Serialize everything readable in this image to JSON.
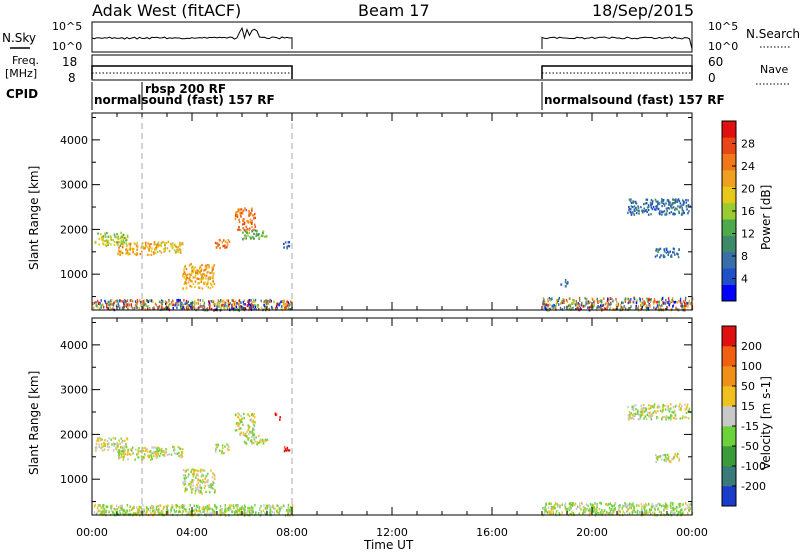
{
  "header": {
    "title": "Adak West (fitACF)",
    "beam": "Beam 17",
    "date": "18/Sep/2015"
  },
  "top_panels": {
    "nsky_label": "N.Sky",
    "nsky_ticks": [
      "10^5",
      "10^0"
    ],
    "nsearch_label": "N.Search",
    "nsearch_ticks": [
      "10^5",
      "10^0"
    ],
    "freq_label": "Freq.",
    "freq_unit": "[MHz]",
    "freq_ticks": [
      "18",
      "8"
    ],
    "nave_label": "Nave",
    "nave_ticks": [
      "60",
      "0"
    ],
    "cpid_label": "CPID",
    "cpid_entries": [
      {
        "label": "normalsound (fast) 157 RF",
        "start_hour": 0
      },
      {
        "label": "rbsp 200 RF",
        "start_hour": 2
      },
      {
        "label": "normalsound (fast) 157 RF",
        "start_hour": 18
      }
    ]
  },
  "chart_data": [
    {
      "type": "scatter",
      "name": "power_panel",
      "ylabel": "Slant Range [km]",
      "yticks": [
        "1000",
        "2000",
        "3000",
        "4000"
      ],
      "ylim": [
        200,
        4600
      ],
      "xlim": [
        0,
        24
      ],
      "colorbar": {
        "label": "Power [dB]",
        "ticks": [
          "28",
          "24",
          "20",
          "16",
          "12",
          "8",
          "4"
        ],
        "colors": [
          "#0000ff",
          "#2050c8",
          "#3a6ea8",
          "#3c8a6a",
          "#4caa4c",
          "#9acc32",
          "#e6c81a",
          "#f0a020",
          "#f07818",
          "#e84818",
          "#e01010"
        ]
      },
      "clusters": [
        {
          "t0": 0.1,
          "t1": 1.4,
          "r0": 1650,
          "r1": 1950,
          "level": 5
        },
        {
          "t0": 1.0,
          "t1": 2.6,
          "r0": 1450,
          "r1": 1750,
          "level": 7
        },
        {
          "t0": 2.5,
          "t1": 3.6,
          "r0": 1500,
          "r1": 1750,
          "level": 6
        },
        {
          "t0": 3.6,
          "t1": 4.9,
          "r0": 700,
          "r1": 1250,
          "level": 7
        },
        {
          "t0": 4.9,
          "t1": 5.5,
          "r0": 1600,
          "r1": 1800,
          "level": 8
        },
        {
          "t0": 5.7,
          "t1": 6.5,
          "r0": 2000,
          "r1": 2500,
          "level": 8
        },
        {
          "t0": 6.0,
          "t1": 7.0,
          "r0": 1800,
          "r1": 2000,
          "level": 4
        },
        {
          "t0": 7.6,
          "t1": 7.9,
          "r0": 1600,
          "r1": 1750,
          "level": 2
        },
        {
          "t0": 18.7,
          "t1": 19.0,
          "r0": 750,
          "r1": 900,
          "level": 2
        },
        {
          "t0": 21.4,
          "t1": 23.9,
          "r0": 2350,
          "r1": 2700,
          "level": 2
        },
        {
          "t0": 22.5,
          "t1": 23.5,
          "r0": 1400,
          "r1": 1600,
          "level": 2
        }
      ],
      "ground_bands": [
        {
          "t0": 0.0,
          "t1": 8.0,
          "r0": 220,
          "r1": 450
        },
        {
          "t0": 18.0,
          "t1": 24.0,
          "r0": 220,
          "r1": 500
        }
      ]
    },
    {
      "type": "scatter",
      "name": "velocity_panel",
      "ylabel": "Slant Range [km]",
      "yticks": [
        "1000",
        "2000",
        "3000",
        "4000"
      ],
      "ylim": [
        200,
        4600
      ],
      "xlim": [
        0,
        24
      ],
      "xlabel": "Time UT",
      "xticks": [
        "00:00",
        "04:00",
        "08:00",
        "12:00",
        "16:00",
        "20:00",
        "00:00"
      ],
      "colorbar": {
        "label": "Velocity [m s-1]",
        "ticks": [
          "200",
          "100",
          "50",
          "15",
          "-15",
          "-50",
          "-100",
          "-200"
        ],
        "colors": [
          "#1a3cc8",
          "#3a7a7a",
          "#3c9c3c",
          "#6cd23c",
          "#c8c8c8",
          "#f0c020",
          "#f09018",
          "#f06010",
          "#e01010"
        ]
      },
      "clusters": [
        {
          "t0": 0.1,
          "t1": 1.4,
          "r0": 1650,
          "r1": 1950,
          "level": 4
        },
        {
          "t0": 1.0,
          "t1": 2.6,
          "r0": 1450,
          "r1": 1750,
          "level": 4
        },
        {
          "t0": 2.5,
          "t1": 3.6,
          "r0": 1500,
          "r1": 1750,
          "level": 4
        },
        {
          "t0": 3.6,
          "t1": 4.9,
          "r0": 700,
          "r1": 1250,
          "level": 4
        },
        {
          "t0": 4.9,
          "t1": 5.5,
          "r0": 1600,
          "r1": 1800,
          "level": 4
        },
        {
          "t0": 5.7,
          "t1": 6.5,
          "r0": 2000,
          "r1": 2500,
          "level": 4
        },
        {
          "t0": 6.0,
          "t1": 7.0,
          "r0": 1800,
          "r1": 2000,
          "level": 4
        },
        {
          "t0": 7.6,
          "t1": 7.9,
          "r0": 1600,
          "r1": 1750,
          "level": 8
        },
        {
          "t0": 7.3,
          "t1": 7.5,
          "r0": 2350,
          "r1": 2500,
          "level": 8
        },
        {
          "t0": 21.4,
          "t1": 23.9,
          "r0": 2350,
          "r1": 2700,
          "level": 4
        },
        {
          "t0": 22.5,
          "t1": 23.5,
          "r0": 1400,
          "r1": 1600,
          "level": 4
        }
      ],
      "ground_bands": [
        {
          "t0": 0.0,
          "t1": 8.0,
          "r0": 220,
          "r1": 450
        },
        {
          "t0": 18.0,
          "t1": 24.0,
          "r0": 220,
          "r1": 500
        }
      ]
    }
  ]
}
